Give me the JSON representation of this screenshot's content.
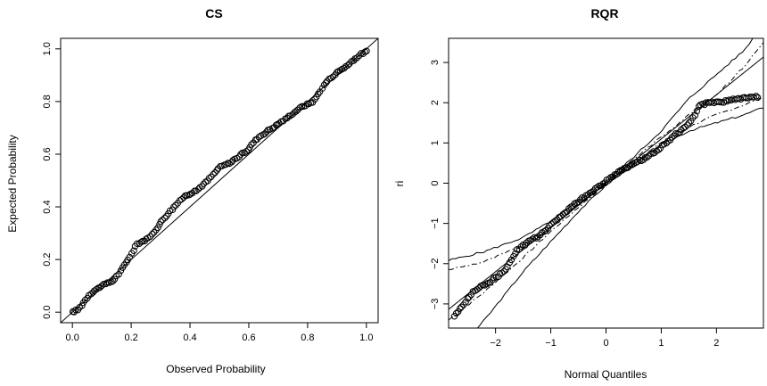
{
  "chart_data": [
    {
      "type": "scatter",
      "title": "CS",
      "xlabel": "Observed Probability",
      "ylabel": "Expected Probability",
      "xlim": [
        -0.04,
        1.04
      ],
      "ylim": [
        -0.04,
        1.04
      ],
      "xticks": [
        0.0,
        0.2,
        0.4,
        0.6,
        0.8,
        1.0
      ],
      "yticks": [
        0.0,
        0.2,
        0.4,
        0.6,
        0.8,
        1.0
      ],
      "tick_labels": {
        "x": [
          "0.0",
          "0.2",
          "0.4",
          "0.6",
          "0.8",
          "1.0"
        ],
        "y": [
          "0.0",
          "0.2",
          "0.4",
          "0.6",
          "0.8",
          "1.0"
        ]
      },
      "marker": "open-circle",
      "reference_line": {
        "type": "identity",
        "x": [
          -0.04,
          1.04
        ],
        "y": [
          -0.04,
          1.04
        ]
      },
      "points_knots": {
        "x": [
          0.0,
          0.02,
          0.04,
          0.06,
          0.1,
          0.14,
          0.16,
          0.2,
          0.22,
          0.26,
          0.3,
          0.33,
          0.38,
          0.42,
          0.46,
          0.5,
          0.54,
          0.6,
          0.62,
          0.64,
          0.68,
          0.72,
          0.78,
          0.82,
          0.86,
          0.9,
          0.94,
          0.98,
          1.0
        ],
        "y": [
          0.0,
          0.01,
          0.04,
          0.07,
          0.1,
          0.12,
          0.15,
          0.22,
          0.26,
          0.28,
          0.34,
          0.38,
          0.44,
          0.46,
          0.5,
          0.55,
          0.57,
          0.62,
          0.65,
          0.67,
          0.7,
          0.73,
          0.78,
          0.8,
          0.87,
          0.91,
          0.94,
          0.98,
          0.99
        ]
      },
      "n_points": 160,
      "grid": false,
      "legend": "none"
    },
    {
      "type": "scatter",
      "title": "RQR",
      "xlabel": "Normal Quantiles",
      "ylabel": "ri",
      "xlim": [
        -2.85,
        2.85
      ],
      "ylim": [
        -3.6,
        3.6
      ],
      "xticks": [
        -2,
        -1,
        0,
        1,
        2
      ],
      "yticks": [
        -3,
        -2,
        -1,
        0,
        1,
        2,
        3
      ],
      "tick_labels": {
        "x": [
          "−2",
          "−1",
          "0",
          "1",
          "2"
        ],
        "y": [
          "−3",
          "−2",
          "−1",
          "0",
          "1",
          "2",
          "3"
        ]
      },
      "marker": "open-circle",
      "reference_line": {
        "slope": 1.1,
        "intercept": 0.0
      },
      "points_knots": {
        "x": [
          -2.75,
          -2.4,
          -2.25,
          -2.1,
          -1.95,
          -1.8,
          -1.6,
          -1.4,
          -1.2,
          -1.0,
          -0.8,
          -0.6,
          -0.4,
          -0.2,
          0.0,
          0.2,
          0.4,
          0.6,
          0.8,
          1.0,
          1.2,
          1.4,
          1.55,
          1.7,
          1.8,
          1.9,
          2.0,
          2.1,
          2.2,
          2.4,
          2.75
        ],
        "y": [
          -3.3,
          -2.7,
          -2.55,
          -2.45,
          -2.3,
          -2.1,
          -1.65,
          -1.45,
          -1.3,
          -1.05,
          -0.8,
          -0.55,
          -0.35,
          -0.15,
          0.05,
          0.25,
          0.4,
          0.55,
          0.7,
          0.9,
          1.15,
          1.35,
          1.55,
          1.95,
          1.98,
          2.0,
          2.0,
          2.02,
          2.05,
          2.1,
          2.15
        ]
      },
      "n_points": 160,
      "envelope_outer_solid": {
        "x": [
          -2.85,
          -2.2,
          -1.5,
          -1.0,
          -0.5,
          0.0,
          0.5,
          1.0,
          1.5,
          2.0,
          2.5,
          2.85
        ],
        "lower": [
          -4.4,
          -3.4,
          -2.2,
          -1.45,
          -0.7,
          -0.05,
          0.45,
          0.95,
          1.3,
          1.5,
          1.7,
          1.88
        ],
        "upper": [
          -1.92,
          -1.7,
          -1.35,
          -0.95,
          -0.45,
          0.05,
          0.65,
          1.3,
          2.1,
          2.7,
          3.3,
          3.95
        ]
      },
      "envelope_inner_dashdot": {
        "x": [
          -2.85,
          -2.2,
          -1.5,
          -1.0,
          -0.5,
          0.0,
          0.5,
          1.0,
          1.5,
          2.0,
          2.5,
          2.85
        ],
        "lower": [
          -3.4,
          -2.7,
          -1.85,
          -1.2,
          -0.6,
          -0.02,
          0.5,
          1.0,
          1.4,
          1.7,
          1.95,
          2.12
        ],
        "upper": [
          -2.15,
          -1.95,
          -1.55,
          -1.1,
          -0.5,
          0.03,
          0.6,
          1.15,
          1.7,
          2.2,
          2.9,
          3.5
        ]
      },
      "grid": false,
      "legend": "none"
    }
  ]
}
